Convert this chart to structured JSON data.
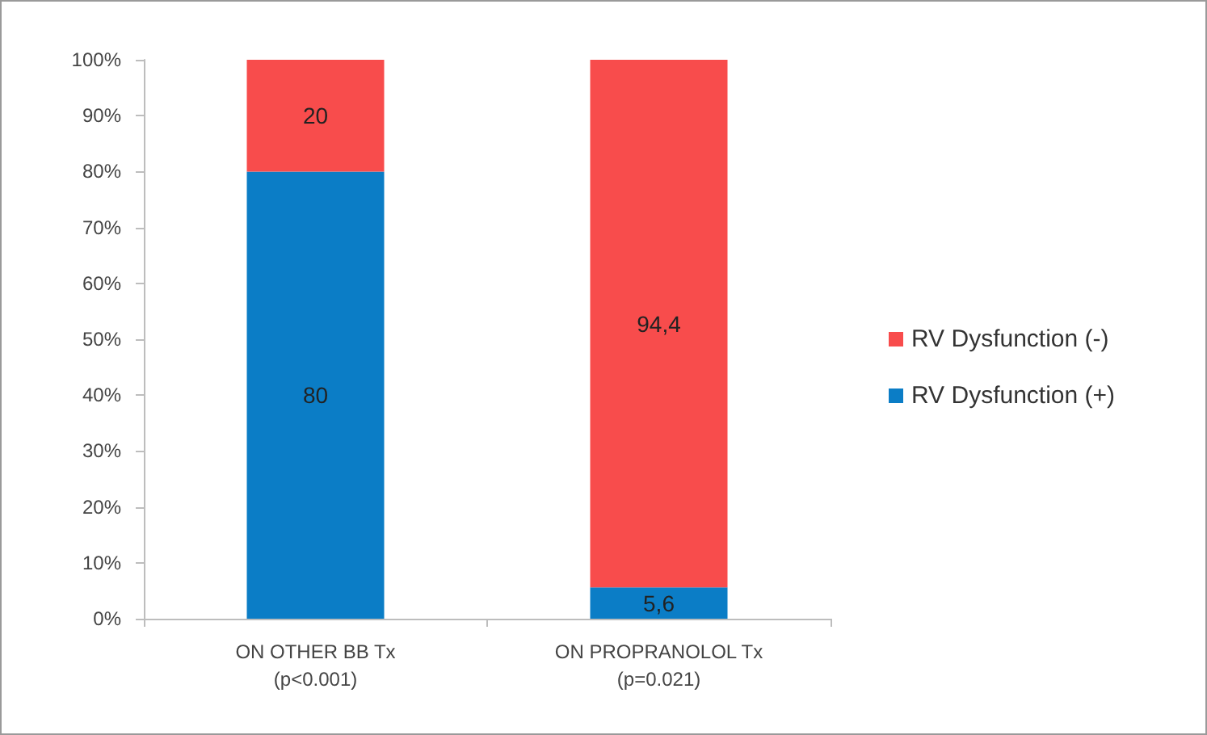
{
  "chart_data": {
    "type": "bar",
    "stacked": true,
    "categories": [
      "ON OTHER BB Tx\n(p<0.001)",
      "ON PROPRANOLOL Tx\n(p=0.021)"
    ],
    "series": [
      {
        "name": "RV Dysfunction (+)",
        "color": "#0b7dc6",
        "values": [
          80,
          5.6
        ],
        "value_labels": [
          "80",
          "5,6"
        ]
      },
      {
        "name": "RV Dysfunction (-)",
        "color": "#f84c4c",
        "values": [
          20,
          94.4
        ],
        "value_labels": [
          "20",
          "94,4"
        ]
      }
    ],
    "ylim": [
      0,
      100
    ],
    "yticks": [
      {
        "value": 0,
        "label": "0%"
      },
      {
        "value": 10,
        "label": "10%"
      },
      {
        "value": 20,
        "label": "20%"
      },
      {
        "value": 30,
        "label": "30%"
      },
      {
        "value": 40,
        "label": "40%"
      },
      {
        "value": 50,
        "label": "50%"
      },
      {
        "value": 60,
        "label": "60%"
      },
      {
        "value": 70,
        "label": "70%"
      },
      {
        "value": 80,
        "label": "80%"
      },
      {
        "value": 90,
        "label": "90%"
      },
      {
        "value": 100,
        "label": "100%"
      }
    ],
    "grid": false,
    "legend": "right"
  }
}
